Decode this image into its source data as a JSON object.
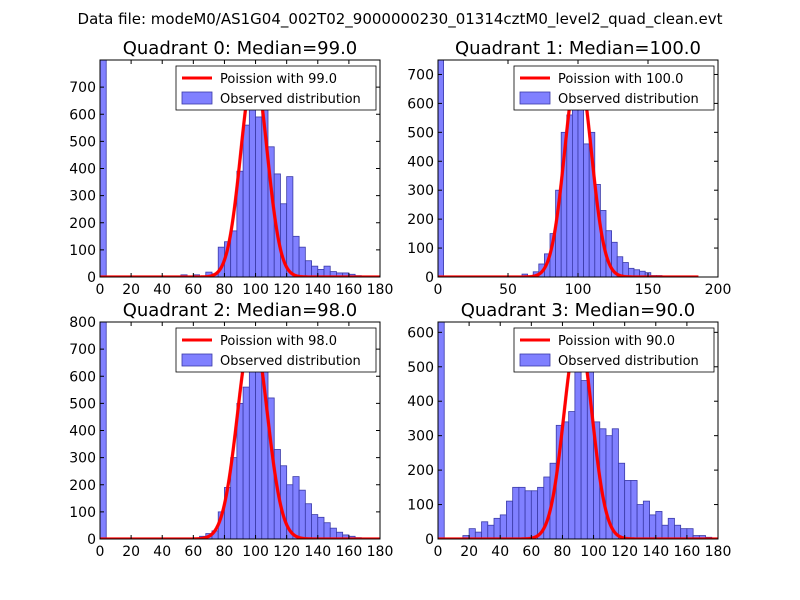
{
  "figure": {
    "suptitle": "Data file: modeM0/AS1G04_002T02_9000000230_01314cztM0_level2_quad_clean.evt"
  },
  "colors": {
    "hist_fill": "#8080ff",
    "hist_edge": "#3a3aa8",
    "poisson_line": "#ff0000",
    "axes": "#000000"
  },
  "chart_data": [
    {
      "type": "bar",
      "title": "Quadrant 0: Median=99.0",
      "legend": [
        "Poission with 99.0",
        "Observed distribution"
      ],
      "legend_position": "top-right",
      "median": 99.0,
      "xlim": [
        0,
        180
      ],
      "ylim": [
        0,
        800
      ],
      "xticks": [
        0,
        20,
        40,
        60,
        80,
        100,
        120,
        140,
        160,
        180
      ],
      "yticks": [
        0,
        100,
        200,
        300,
        400,
        500,
        600,
        700
      ],
      "bin_width": 4,
      "bins": [
        [
          0,
          800
        ],
        [
          52,
          8
        ],
        [
          60,
          8
        ],
        [
          68,
          18
        ],
        [
          72,
          12
        ],
        [
          76,
          110
        ],
        [
          80,
          130
        ],
        [
          84,
          170
        ],
        [
          88,
          390
        ],
        [
          92,
          560
        ],
        [
          96,
          760
        ],
        [
          100,
          590
        ],
        [
          104,
          670
        ],
        [
          108,
          480
        ],
        [
          112,
          380
        ],
        [
          116,
          270
        ],
        [
          120,
          370
        ],
        [
          124,
          150
        ],
        [
          128,
          110
        ],
        [
          132,
          60
        ],
        [
          136,
          40
        ],
        [
          140,
          28
        ],
        [
          144,
          40
        ],
        [
          148,
          20
        ],
        [
          152,
          15
        ],
        [
          156,
          15
        ],
        [
          160,
          10
        ],
        [
          164,
          5
        ]
      ],
      "poisson": {
        "peak": 760,
        "mean": 99,
        "sigma": 8.5,
        "x_start": 0,
        "x_end": 180
      }
    },
    {
      "type": "bar",
      "title": "Quadrant 1: Median=100.0",
      "legend": [
        "Poission with 100.0",
        "Observed distribution"
      ],
      "legend_position": "top-right",
      "median": 100.0,
      "xlim": [
        0,
        200
      ],
      "ylim": [
        0,
        750
      ],
      "xticks": [
        0,
        50,
        100,
        150,
        200
      ],
      "yticks": [
        0,
        100,
        200,
        300,
        400,
        500,
        600,
        700
      ],
      "bin_width": 4,
      "bins": [
        [
          0,
          750
        ],
        [
          60,
          10
        ],
        [
          68,
          18
        ],
        [
          72,
          45
        ],
        [
          76,
          80
        ],
        [
          80,
          150
        ],
        [
          84,
          300
        ],
        [
          88,
          500
        ],
        [
          92,
          560
        ],
        [
          96,
          720
        ],
        [
          100,
          700
        ],
        [
          104,
          460
        ],
        [
          108,
          500
        ],
        [
          112,
          320
        ],
        [
          116,
          230
        ],
        [
          120,
          160
        ],
        [
          124,
          120
        ],
        [
          128,
          70
        ],
        [
          132,
          50
        ],
        [
          136,
          30
        ],
        [
          140,
          25
        ],
        [
          144,
          20
        ],
        [
          148,
          15
        ],
        [
          152,
          5
        ],
        [
          156,
          5
        ]
      ],
      "poisson": {
        "peak": 720,
        "mean": 100,
        "sigma": 9.5,
        "x_start": 0,
        "x_end": 186
      }
    },
    {
      "type": "bar",
      "title": "Quadrant 2: Median=98.0",
      "legend": [
        "Poission with 98.0",
        "Observed distribution"
      ],
      "legend_position": "top-right",
      "median": 98.0,
      "xlim": [
        0,
        180
      ],
      "ylim": [
        0,
        800
      ],
      "xticks": [
        0,
        20,
        40,
        60,
        80,
        100,
        120,
        140,
        160,
        180
      ],
      "yticks": [
        0,
        100,
        200,
        300,
        400,
        500,
        600,
        700,
        800
      ],
      "bin_width": 4,
      "bins": [
        [
          0,
          800
        ],
        [
          64,
          10
        ],
        [
          68,
          20
        ],
        [
          72,
          30
        ],
        [
          76,
          100
        ],
        [
          80,
          190
        ],
        [
          84,
          300
        ],
        [
          88,
          500
        ],
        [
          92,
          560
        ],
        [
          96,
          750
        ],
        [
          100,
          630
        ],
        [
          104,
          700
        ],
        [
          108,
          520
        ],
        [
          112,
          330
        ],
        [
          116,
          270
        ],
        [
          120,
          200
        ],
        [
          124,
          230
        ],
        [
          128,
          180
        ],
        [
          132,
          130
        ],
        [
          136,
          90
        ],
        [
          140,
          80
        ],
        [
          144,
          60
        ],
        [
          148,
          40
        ],
        [
          152,
          25
        ],
        [
          156,
          15
        ],
        [
          160,
          10
        ],
        [
          164,
          5
        ]
      ],
      "poisson": {
        "peak": 770,
        "mean": 98,
        "sigma": 9.5,
        "x_start": 0,
        "x_end": 180
      }
    },
    {
      "type": "bar",
      "title": "Quadrant 3: Median=90.0",
      "legend": [
        "Poission with 90.0",
        "Observed distribution"
      ],
      "legend_position": "top-right",
      "median": 90.0,
      "xlim": [
        0,
        180
      ],
      "ylim": [
        0,
        630
      ],
      "xticks": [
        0,
        20,
        40,
        60,
        80,
        100,
        120,
        140,
        160,
        180
      ],
      "yticks": [
        0,
        100,
        200,
        300,
        400,
        500,
        600
      ],
      "bin_width": 4,
      "bins": [
        [
          0,
          630
        ],
        [
          16,
          10
        ],
        [
          20,
          30
        ],
        [
          24,
          20
        ],
        [
          28,
          50
        ],
        [
          32,
          40
        ],
        [
          36,
          60
        ],
        [
          40,
          70
        ],
        [
          44,
          110
        ],
        [
          48,
          150
        ],
        [
          52,
          150
        ],
        [
          56,
          140
        ],
        [
          60,
          140
        ],
        [
          64,
          150
        ],
        [
          68,
          180
        ],
        [
          72,
          220
        ],
        [
          76,
          330
        ],
        [
          80,
          340
        ],
        [
          84,
          370
        ],
        [
          88,
          590
        ],
        [
          92,
          460
        ],
        [
          96,
          560
        ],
        [
          100,
          340
        ],
        [
          104,
          320
        ],
        [
          108,
          300
        ],
        [
          112,
          320
        ],
        [
          116,
          220
        ],
        [
          120,
          170
        ],
        [
          124,
          170
        ],
        [
          128,
          100
        ],
        [
          132,
          110
        ],
        [
          136,
          70
        ],
        [
          140,
          80
        ],
        [
          144,
          40
        ],
        [
          148,
          60
        ],
        [
          152,
          40
        ],
        [
          156,
          30
        ],
        [
          160,
          30
        ],
        [
          164,
          10
        ],
        [
          168,
          10
        ],
        [
          172,
          5
        ]
      ],
      "poisson": {
        "peak": 600,
        "mean": 90,
        "sigma": 9,
        "x_start": 0,
        "x_end": 180
      }
    }
  ]
}
